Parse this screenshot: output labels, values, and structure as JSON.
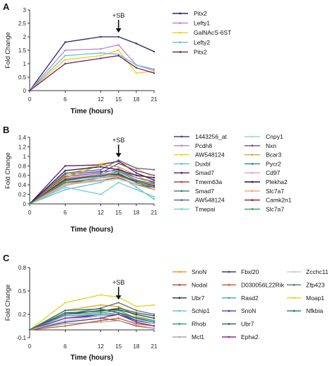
{
  "chart_data": [
    {
      "panel": "A",
      "type": "line",
      "xlabel": "Time (hours)",
      "ylabel": "Fold Change",
      "annotation": "+SB",
      "annotation_x": 15,
      "x": [
        0,
        6,
        12,
        15,
        18,
        21
      ],
      "xticks": [
        "0",
        "6",
        "12",
        "15",
        "18",
        "21"
      ],
      "yticks": [
        "0",
        "0.5",
        "1",
        "1.5",
        "2",
        "2.5",
        "3"
      ],
      "ylim": [
        0,
        3
      ],
      "legend_position": "right",
      "series": [
        {
          "name": "Pitx2",
          "color": "#2e2366",
          "values": [
            0,
            1.8,
            2.0,
            2.0,
            1.75,
            1.45
          ]
        },
        {
          "name": "Lefty1",
          "color": "#c47fd1",
          "values": [
            0,
            1.5,
            1.55,
            1.7,
            0.95,
            0.75
          ]
        },
        {
          "name": "GalNAcS-6ST",
          "color": "#e8d21a",
          "values": [
            0,
            1.15,
            1.3,
            1.5,
            0.65,
            0.72
          ]
        },
        {
          "name": "Lefty2",
          "color": "#5dc3d8",
          "values": [
            0,
            1.3,
            1.4,
            1.35,
            0.95,
            0.8
          ]
        },
        {
          "name": "Pitx2",
          "color": "#7a1a66",
          "values": [
            0,
            1.0,
            1.2,
            1.3,
            0.85,
            0.65
          ]
        }
      ]
    },
    {
      "panel": "B",
      "type": "line",
      "xlabel": "Time (hours)",
      "ylabel": "Fold Change",
      "annotation": "+SB",
      "annotation_x": 15,
      "x": [
        0,
        6,
        12,
        15,
        18,
        21
      ],
      "xticks": [
        "0",
        "6",
        "12",
        "15",
        "18",
        "21"
      ],
      "yticks": [
        "0",
        "0.2",
        "0.4",
        "0.6",
        "0.8",
        "1",
        "1.2",
        "1.4"
      ],
      "ylim": [
        0,
        1.4
      ],
      "legend_position": "right",
      "series": [
        {
          "name": "1443256_at",
          "color": "#3b4a8a",
          "values": [
            0,
            0.62,
            0.68,
            0.7,
            0.55,
            0.45
          ]
        },
        {
          "name": "Pcdh8",
          "color": "#c47fd1",
          "values": [
            0,
            0.55,
            0.62,
            0.75,
            0.55,
            0.48
          ]
        },
        {
          "name": "AW548124",
          "color": "#e8d21a",
          "values": [
            0,
            0.6,
            0.85,
            0.88,
            0.75,
            0.55
          ]
        },
        {
          "name": "Duxbl",
          "color": "#5dc3d8",
          "values": [
            0,
            0.3,
            0.45,
            0.6,
            0.35,
            0.1
          ]
        },
        {
          "name": "Smad7",
          "color": "#5a1f6e",
          "values": [
            0,
            0.8,
            0.82,
            0.9,
            0.65,
            0.5
          ]
        },
        {
          "name": "Tmem63a",
          "color": "#b0473a",
          "values": [
            0,
            0.45,
            0.5,
            0.55,
            0.4,
            0.35
          ]
        },
        {
          "name": "Smad7",
          "color": "#3a7a7a",
          "values": [
            0,
            0.5,
            0.58,
            0.65,
            0.45,
            0.3
          ]
        },
        {
          "name": "AW548124",
          "color": "#5f5f9f",
          "values": [
            0,
            0.65,
            0.72,
            0.92,
            0.75,
            0.72
          ]
        },
        {
          "name": "Tmepai",
          "color": "#6fcfcf",
          "values": [
            0,
            0.35,
            0.2,
            0.45,
            0.3,
            0.15
          ]
        },
        {
          "name": "Cnpy1",
          "color": "#9fd8cf",
          "values": [
            0,
            0.4,
            0.48,
            0.52,
            0.42,
            0.38
          ]
        },
        {
          "name": "Nxn",
          "color": "#7a4a8a",
          "values": [
            0,
            0.58,
            0.65,
            0.85,
            0.7,
            0.6
          ]
        },
        {
          "name": "Bcar3",
          "color": "#d4a83a",
          "values": [
            0,
            0.55,
            0.82,
            0.78,
            0.6,
            0.42
          ]
        },
        {
          "name": "Pycr2",
          "color": "#2a8a8a",
          "values": [
            0,
            0.45,
            0.55,
            0.6,
            0.45,
            0.35
          ]
        },
        {
          "name": "Cd97",
          "color": "#e59acf",
          "values": [
            0,
            0.38,
            0.55,
            0.7,
            0.5,
            0.4
          ]
        },
        {
          "name": "Plekha2",
          "color": "#1f1f4f",
          "values": [
            0,
            0.7,
            0.78,
            0.72,
            0.6,
            0.55
          ]
        },
        {
          "name": "Slc7a7",
          "color": "#f2a27a",
          "values": [
            0,
            0.42,
            0.5,
            0.58,
            0.4,
            0.3
          ]
        },
        {
          "name": "Camk2n1",
          "color": "#8a1f2f",
          "values": [
            0,
            0.52,
            0.6,
            0.62,
            0.48,
            0.38
          ]
        },
        {
          "name": "Slc7a7",
          "color": "#2fa05a",
          "values": [
            0,
            0.48,
            0.6,
            0.68,
            0.5,
            0.42
          ]
        }
      ]
    },
    {
      "panel": "C",
      "type": "line",
      "xlabel": "Time (hours)",
      "ylabel": "Fold Change",
      "annotation": "+SB",
      "annotation_x": 15,
      "x": [
        0,
        6,
        12,
        15,
        18,
        21
      ],
      "xticks": [
        "0",
        "6",
        "12",
        "15",
        "18",
        "21"
      ],
      "yticks": [
        "-0.1",
        "0.2",
        "0.5",
        "0.8"
      ],
      "ylim": [
        -0.1,
        0.8
      ],
      "legend_position": "right",
      "series": [
        {
          "name": "SnoN",
          "color": "#f0a01a",
          "values": [
            0,
            0.25,
            0.32,
            0.3,
            0.18,
            0.12
          ]
        },
        {
          "name": "Nodal",
          "color": "#b0473a",
          "values": [
            0,
            0.1,
            0.15,
            0.12,
            0.05,
            0.02
          ]
        },
        {
          "name": "Ubr7",
          "color": "#1f3a3a",
          "values": [
            0,
            0.2,
            0.25,
            0.26,
            0.2,
            0.15
          ]
        },
        {
          "name": "Schip1",
          "color": "#5dc3d8",
          "values": [
            0,
            0.12,
            0.18,
            0.2,
            0.1,
            0.05
          ]
        },
        {
          "name": "Rhob",
          "color": "#2fa05a",
          "values": [
            0,
            0.2,
            0.22,
            0.25,
            0.15,
            0.1
          ]
        },
        {
          "name": "Mcl1",
          "color": "#aaaaaa",
          "values": [
            0,
            0.08,
            0.1,
            0.12,
            0.06,
            0.02
          ]
        },
        {
          "name": "Fbxl20",
          "color": "#3b3b8a",
          "values": [
            0,
            0.15,
            0.2,
            0.22,
            0.12,
            0.08
          ]
        },
        {
          "name": "D030056L22Rik",
          "color": "#c05a2a",
          "values": [
            0,
            0.05,
            0.12,
            0.15,
            0.08,
            0.05
          ]
        },
        {
          "name": "Rasd2",
          "color": "#4aa0b0",
          "values": [
            0,
            0.18,
            0.2,
            0.22,
            0.16,
            0.12
          ]
        },
        {
          "name": "SnoN",
          "color": "#3f4fa0",
          "values": [
            0,
            0.1,
            0.15,
            0.2,
            0.12,
            0.08
          ]
        },
        {
          "name": "Ubr7",
          "color": "#2f5f5f",
          "values": [
            0,
            0.22,
            0.24,
            0.28,
            0.22,
            0.18
          ]
        },
        {
          "name": "Epha2",
          "color": "#8a2a9a",
          "values": [
            0,
            0.15,
            0.18,
            0.2,
            0.1,
            0.05
          ]
        },
        {
          "name": "Zcchc11",
          "color": "#c8c8d8",
          "values": [
            0,
            0.12,
            0.18,
            0.22,
            0.14,
            0.08
          ]
        },
        {
          "name": "Zfp423",
          "color": "#5f6f7f",
          "values": [
            0,
            0.2,
            0.28,
            0.35,
            0.25,
            0.2
          ]
        },
        {
          "name": "Moap1",
          "color": "#e8d21a",
          "values": [
            0,
            0.35,
            0.45,
            0.42,
            0.3,
            0.32
          ]
        },
        {
          "name": "Nfkbia",
          "color": "#2a7a5a",
          "values": [
            0,
            0.25,
            0.27,
            0.22,
            0.15,
            0.1
          ]
        }
      ]
    }
  ]
}
